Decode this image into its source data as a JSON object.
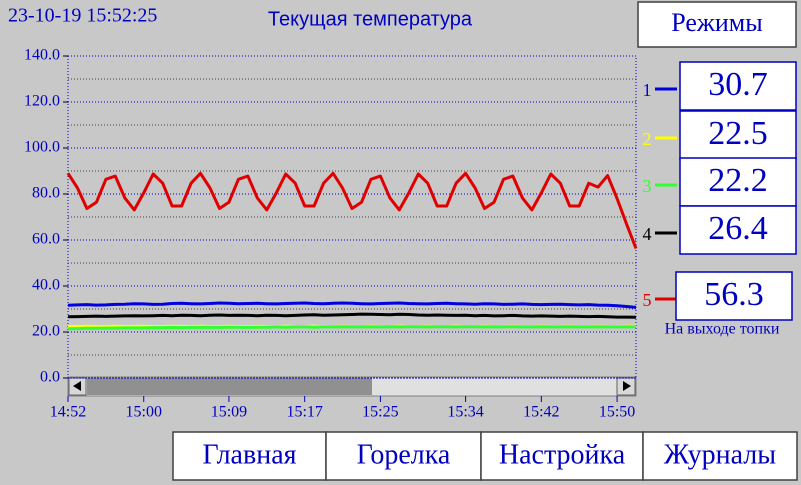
{
  "header": {
    "datetime": "23-10-19 15:52:25",
    "modes_button": "Режимы"
  },
  "nav": [
    "Главная",
    "Горелка",
    "Настройка",
    "Журналы"
  ],
  "chart_data": {
    "type": "line",
    "title": "Текущая температура",
    "categories": [
      "14:52",
      null,
      null,
      null,
      null,
      null,
      null,
      null,
      "15:00",
      null,
      null,
      null,
      null,
      null,
      null,
      null,
      null,
      "15:09",
      null,
      null,
      null,
      null,
      null,
      null,
      null,
      "15:17",
      null,
      null,
      null,
      null,
      null,
      null,
      null,
      "15:25",
      null,
      null,
      null,
      null,
      null,
      null,
      null,
      null,
      "15:34",
      null,
      null,
      null,
      null,
      null,
      null,
      null,
      "15:42",
      null,
      null,
      null,
      null,
      null,
      null,
      null,
      "15:50",
      null,
      null
    ],
    "ylim": [
      0,
      140
    ],
    "yticks": [
      {
        "value": 0,
        "label": "0.0"
      },
      {
        "value": 20,
        "label": "20.0"
      },
      {
        "value": 40,
        "label": "40.0"
      },
      {
        "value": 60,
        "label": "60.0"
      },
      {
        "value": 80,
        "label": "80.0"
      },
      {
        "value": 100,
        "label": "100.0"
      },
      {
        "value": 120,
        "label": "120.0"
      },
      {
        "value": 140,
        "label": "140.0"
      }
    ],
    "yminor": [
      10,
      30,
      50,
      70,
      90,
      110,
      130
    ],
    "grid": true,
    "series": [
      {
        "name": "1",
        "color": "#0000e0",
        "current": 30.7,
        "values": [
          31.6,
          31.8,
          31.9,
          31.7,
          31.8,
          32.0,
          32.1,
          32.3,
          32.2,
          32.0,
          32.1,
          32.4,
          32.5,
          32.3,
          32.2,
          32.4,
          32.6,
          32.5,
          32.3,
          32.4,
          32.5,
          32.3,
          32.2,
          32.4,
          32.5,
          32.6,
          32.4,
          32.3,
          32.5,
          32.6,
          32.5,
          32.3,
          32.2,
          32.4,
          32.5,
          32.6,
          32.4,
          32.3,
          32.2,
          32.4,
          32.5,
          32.3,
          32.2,
          32.1,
          32.3,
          32.2,
          32.0,
          32.1,
          32.2,
          32.0,
          31.9,
          32.0,
          32.1,
          31.9,
          31.8,
          31.9,
          31.7,
          31.6,
          31.4,
          31.1,
          30.7
        ]
      },
      {
        "name": "2",
        "color": "#ffff00",
        "current": 22.5,
        "values": [
          22.4,
          22.4,
          22.5,
          22.4,
          22.4,
          22.5,
          22.4,
          22.4,
          22.5,
          22.4,
          22.4,
          22.5,
          22.4,
          22.4,
          22.5,
          22.4,
          22.4,
          22.5,
          22.4,
          22.4,
          22.5,
          22.4,
          22.4,
          22.5,
          22.4,
          22.4,
          22.5,
          22.4,
          22.4,
          22.5,
          22.4,
          22.4,
          22.5,
          22.4,
          22.4,
          22.5,
          22.4,
          22.4,
          22.5,
          22.4,
          22.4,
          22.5,
          22.4,
          22.4,
          22.5,
          22.4,
          22.4,
          22.5,
          22.4,
          22.4,
          22.5,
          22.4,
          22.4,
          22.5,
          22.4,
          22.4,
          22.5,
          22.4,
          22.4,
          22.5,
          22.5
        ]
      },
      {
        "name": "3",
        "color": "#30ff30",
        "current": 22.2,
        "values": [
          21.4,
          21.5,
          21.6,
          21.6,
          21.7,
          21.7,
          21.8,
          21.8,
          21.8,
          21.9,
          21.9,
          22.0,
          21.9,
          22.0,
          22.0,
          22.1,
          22.0,
          22.1,
          22.1,
          22.0,
          22.1,
          22.1,
          22.2,
          22.1,
          22.2,
          22.2,
          22.1,
          22.2,
          22.2,
          22.3,
          22.2,
          22.3,
          22.2,
          22.2,
          22.3,
          22.2,
          22.3,
          22.3,
          22.2,
          22.3,
          22.3,
          22.2,
          22.3,
          22.3,
          22.2,
          22.3,
          22.2,
          22.3,
          22.2,
          22.2,
          22.3,
          22.2,
          22.2,
          22.3,
          22.2,
          22.2,
          22.3,
          22.2,
          22.2,
          22.2,
          22.2
        ]
      },
      {
        "name": "4",
        "color": "#000000",
        "current": 26.4,
        "values": [
          26.6,
          26.7,
          26.8,
          26.9,
          26.8,
          26.9,
          27.0,
          27.1,
          27.0,
          27.1,
          27.2,
          27.1,
          27.3,
          27.2,
          27.1,
          27.3,
          27.4,
          27.2,
          27.3,
          27.2,
          27.1,
          27.3,
          27.2,
          27.1,
          27.2,
          27.4,
          27.5,
          27.3,
          27.4,
          27.5,
          27.6,
          27.8,
          27.7,
          27.6,
          27.5,
          27.7,
          27.6,
          27.4,
          27.3,
          27.4,
          27.3,
          27.2,
          27.3,
          27.1,
          27.2,
          27.0,
          27.1,
          27.2,
          27.0,
          26.9,
          27.0,
          26.9,
          26.8,
          26.9,
          26.8,
          26.7,
          26.8,
          26.6,
          26.5,
          26.5,
          26.4
        ]
      },
      {
        "name": "5",
        "color": "#e00000",
        "current": 56.3,
        "note": "На выходе топки",
        "values": [
          89,
          82.6,
          73.7,
          76.4,
          86.4,
          87.8,
          78.3,
          73.1,
          80.5,
          88.7,
          84.7,
          74.8,
          74.8,
          84.7,
          89,
          82.6,
          73.7,
          76.4,
          86.4,
          87.8,
          78.3,
          73.1,
          80.5,
          88.7,
          84.7,
          74.8,
          74.8,
          84.7,
          89,
          82.6,
          73.7,
          76.4,
          86.4,
          87.8,
          78.3,
          73.1,
          80.5,
          88.7,
          84.7,
          74.8,
          74.8,
          84.7,
          89,
          82.6,
          73.7,
          76.4,
          86.4,
          87.8,
          78.3,
          73.1,
          80.5,
          88.7,
          84.7,
          74.8,
          74.8,
          84.7,
          83,
          88,
          78,
          67,
          56.3
        ]
      }
    ]
  }
}
